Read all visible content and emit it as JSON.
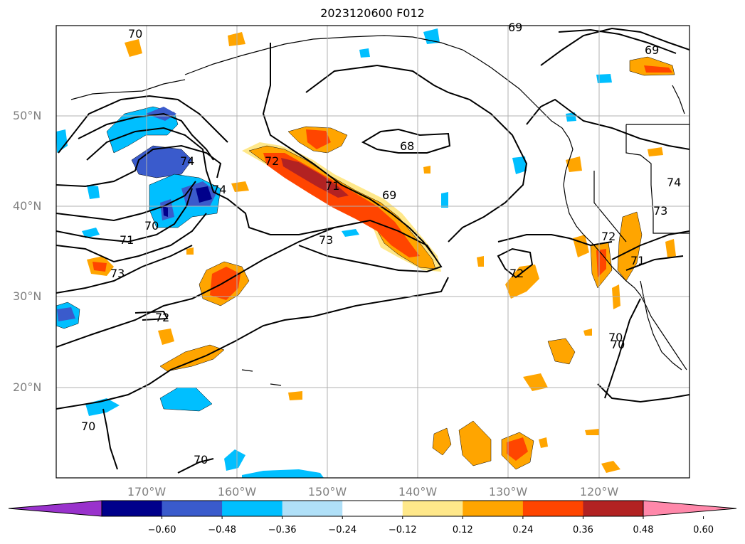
{
  "title": "2023120600 F012",
  "map": {
    "projection": "PlateCarree",
    "lon_range": [
      -180,
      -110
    ],
    "lat_range": [
      10,
      60
    ],
    "lat_labels": [
      "50°N",
      "40°N",
      "30°N",
      "20°N"
    ],
    "lat_values": [
      50,
      40,
      30,
      20
    ],
    "lon_labels": [
      "170°W",
      "160°W",
      "150°W",
      "140°W",
      "130°W",
      "120°W"
    ],
    "lon_values": [
      -170,
      -160,
      -150,
      -140,
      -130,
      -120
    ],
    "gridlines": true,
    "coastline_color": "#000000",
    "contour_color": "#000000"
  },
  "contour_labels": [
    "70",
    "69",
    "69",
    "74",
    "74",
    "72",
    "71",
    "69",
    "68",
    "70",
    "71",
    "73",
    "73",
    "72",
    "71",
    "73",
    "72",
    "74",
    "72",
    "70",
    "70",
    "70",
    "70"
  ],
  "colorbar": {
    "ticks": [
      "−0.60",
      "−0.48",
      "−0.36",
      "−0.24",
      "−0.12",
      "0.12",
      "0.24",
      "0.36",
      "0.48",
      "0.60"
    ],
    "colors": [
      "#9932cc",
      "#00008b",
      "#3a5bcc",
      "#00bfff",
      "#b0e0f8",
      "#ffffff",
      "#ffe88a",
      "#ffa500",
      "#ff4500",
      "#b22222",
      "#ff88aa"
    ],
    "extend": "both"
  }
}
